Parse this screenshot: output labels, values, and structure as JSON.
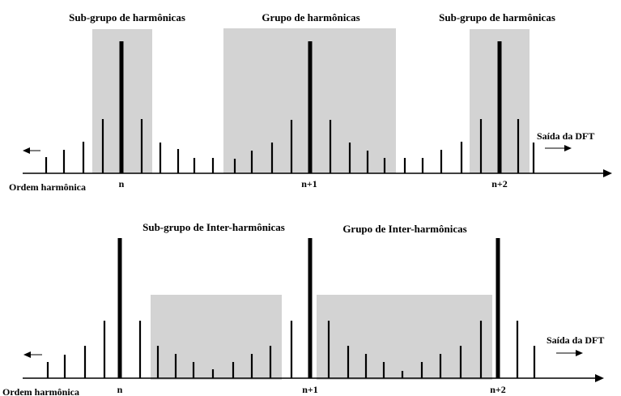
{
  "top_panel": {
    "title_left": "Sub-grupo de harmônicas",
    "title_center": "Grupo de harmônicas",
    "title_right": "Sub-grupo de harmônicas",
    "output_label": "Saída da DFT",
    "axis_label": "Ordem harmônica",
    "ticks": [
      "n",
      "n+1",
      "n+2"
    ]
  },
  "bottom_panel": {
    "title_left": "Sub-grupo de Inter-harmônicas",
    "title_right": "Grupo de Inter-harmônicas",
    "output_label": "Saída da DFT",
    "axis_label": "Ordem harmônica",
    "ticks": [
      "n",
      "n+1",
      "n+2"
    ]
  },
  "colors": {
    "shade": "#d3d3d3",
    "line": "#000000"
  }
}
